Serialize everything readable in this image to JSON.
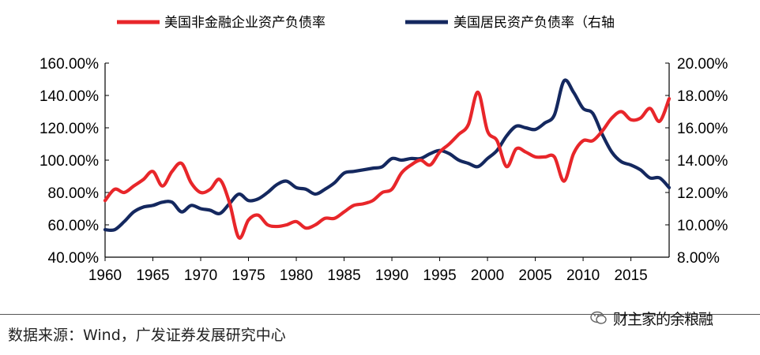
{
  "chart_data": {
    "type": "line",
    "title": "",
    "x": [
      1960,
      1961,
      1962,
      1963,
      1964,
      1965,
      1966,
      1967,
      1968,
      1969,
      1970,
      1971,
      1972,
      1973,
      1974,
      1975,
      1976,
      1977,
      1978,
      1979,
      1980,
      1981,
      1982,
      1983,
      1984,
      1985,
      1986,
      1987,
      1988,
      1989,
      1990,
      1991,
      1992,
      1993,
      1994,
      1995,
      1996,
      1997,
      1998,
      1999,
      2000,
      2001,
      2002,
      2003,
      2004,
      2005,
      2006,
      2007,
      2008,
      2009,
      2010,
      2011,
      2012,
      2013,
      2014,
      2015,
      2016,
      2017,
      2018,
      2019
    ],
    "xlim": [
      1960,
      2019
    ],
    "x_ticks": [
      "1960",
      "1965",
      "1970",
      "1975",
      "1980",
      "1985",
      "1990",
      "1995",
      "2000",
      "2005",
      "2010",
      "2015"
    ],
    "y_left": {
      "ylim": [
        40,
        160
      ],
      "ticks": [
        "40.00%",
        "60.00%",
        "80.00%",
        "100.00%",
        "120.00%",
        "140.00%",
        "160.00%"
      ]
    },
    "y_right": {
      "ylim": [
        8,
        20
      ],
      "ticks": [
        "8.00%",
        "10.00%",
        "12.00%",
        "14.00%",
        "16.00%",
        "18.00%",
        "20.00%"
      ]
    },
    "series": [
      {
        "name": "美国非金融企业资产负债率",
        "axis": "left",
        "color": "#e8262a",
        "values": [
          75,
          82,
          80,
          84,
          88,
          93,
          84,
          93,
          98,
          86,
          80,
          82,
          88,
          74,
          52,
          63,
          66,
          60,
          59,
          60,
          62,
          58,
          60,
          64,
          64,
          68,
          72,
          73,
          75,
          80,
          82,
          92,
          97,
          100,
          97,
          105,
          110,
          116,
          122,
          142,
          118,
          112,
          96,
          107,
          105,
          102,
          102,
          102,
          87,
          104,
          112,
          112,
          118,
          126,
          130,
          125,
          126,
          132,
          124,
          138
        ]
      },
      {
        "name": "美国居民资产负债率（右轴",
        "axis": "right",
        "color": "#14285f",
        "values": [
          9.7,
          9.7,
          10.2,
          10.8,
          11.1,
          11.2,
          11.4,
          11.4,
          10.8,
          11.2,
          11.0,
          10.9,
          10.7,
          11.3,
          11.9,
          11.5,
          11.6,
          12.0,
          12.5,
          12.7,
          12.3,
          12.2,
          11.9,
          12.2,
          12.6,
          13.2,
          13.3,
          13.4,
          13.5,
          13.6,
          14.1,
          14.0,
          14.1,
          14.1,
          14.4,
          14.6,
          14.4,
          14.0,
          13.8,
          13.6,
          14.1,
          14.6,
          15.5,
          16.1,
          16.0,
          15.9,
          16.3,
          16.8,
          18.9,
          18.2,
          17.2,
          16.9,
          15.6,
          14.5,
          13.9,
          13.7,
          13.4,
          12.9,
          12.9,
          12.3
        ]
      }
    ]
  },
  "source": "数据来源：Wind，广发证券发展研究中心",
  "watermark": "财主家的余粮融"
}
